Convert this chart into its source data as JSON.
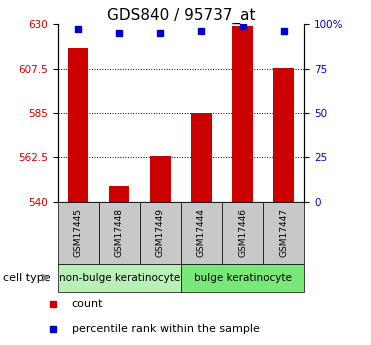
{
  "title": "GDS840 / 95737_at",
  "samples": [
    "GSM17445",
    "GSM17448",
    "GSM17449",
    "GSM17444",
    "GSM17446",
    "GSM17447"
  ],
  "counts": [
    618,
    548,
    563,
    585,
    629,
    608
  ],
  "percentile_ranks": [
    97,
    95,
    95,
    96,
    99,
    96
  ],
  "ylim_left": [
    540,
    630
  ],
  "ylim_right": [
    0,
    100
  ],
  "yticks_left": [
    540,
    562.5,
    585,
    607.5,
    630
  ],
  "yticks_right": [
    0,
    25,
    50,
    75,
    100
  ],
  "ytick_labels_left": [
    "540",
    "562.5",
    "585",
    "607.5",
    "630"
  ],
  "ytick_labels_right": [
    "0",
    "25",
    "50",
    "75",
    "100%"
  ],
  "groups": [
    {
      "label": "non-bulge keratinocyte",
      "indices": [
        0,
        1,
        2
      ],
      "color": "#b8f0b8"
    },
    {
      "label": "bulge keratinocyte",
      "indices": [
        3,
        4,
        5
      ],
      "color": "#78e878"
    }
  ],
  "bar_color": "#cc0000",
  "dot_color": "#0000cc",
  "bar_width": 0.5,
  "legend_items": [
    "count",
    "percentile rank within the sample"
  ],
  "cell_type_label": "cell type",
  "sample_box_color": "#c8c8c8",
  "font_size_title": 11,
  "font_size_ticks": 7.5,
  "font_size_legend": 8,
  "font_size_group_label": 7.5,
  "font_size_cell_type": 8,
  "font_size_sample": 6.5
}
